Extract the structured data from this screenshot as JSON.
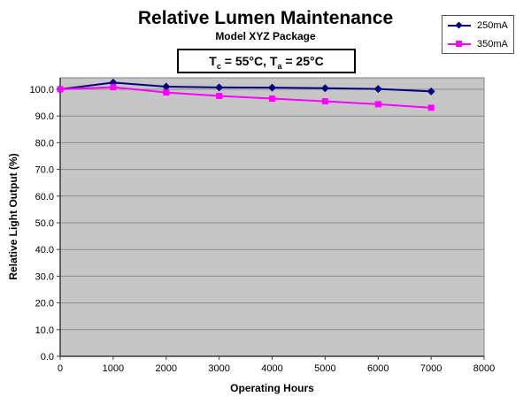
{
  "chart_data": {
    "type": "line",
    "title": "Relative Lumen Maintenance",
    "subtitle": "Model XYZ Package",
    "annotation": {
      "t1": "T",
      "sub1": "c",
      "mid": " = 55°C, T",
      "sub2": "a",
      "end": " = 25°C",
      "plain_text": "Tc = 55°C, Ta = 25°C"
    },
    "xlabel": "Operating Hours",
    "ylabel": "Relative Light Output (%)",
    "x": [
      0,
      1000,
      2000,
      3000,
      4000,
      5000,
      6000,
      7000
    ],
    "series": [
      {
        "name": "250mA",
        "color": "#000080",
        "marker": "diamond",
        "values": [
          100.0,
          102.5,
          101.0,
          100.7,
          100.6,
          100.4,
          100.1,
          99.2
        ]
      },
      {
        "name": "350mA",
        "color": "#FF00FF",
        "marker": "square",
        "values": [
          100.0,
          100.8,
          98.8,
          97.5,
          96.5,
          95.5,
          94.4,
          93.1
        ]
      }
    ],
    "xlim": [
      0,
      8000
    ],
    "ylim": [
      0,
      104.3
    ],
    "xtick_values": [
      0,
      1000,
      2000,
      3000,
      4000,
      5000,
      6000,
      7000,
      8000
    ],
    "xtick_labels": [
      "0",
      "1000",
      "2000",
      "3000",
      "4000",
      "5000",
      "6000",
      "7000",
      "8000"
    ],
    "ytick_values": [
      0,
      10,
      20,
      30,
      40,
      50,
      60,
      70,
      80,
      90,
      100
    ],
    "ytick_labels": [
      "0.0",
      "10.0",
      "20.0",
      "30.0",
      "40.0",
      "50.0",
      "60.0",
      "70.0",
      "80.0",
      "90.0",
      "100.0"
    ],
    "grid": "horizontal-major",
    "legend_position": "top-right",
    "colors": {
      "plot_bg": "#C6C6C6",
      "gridline": "#8c8c8c",
      "plot_border": "#808080",
      "axis": "#3a3a3a",
      "text": "#000000"
    }
  }
}
